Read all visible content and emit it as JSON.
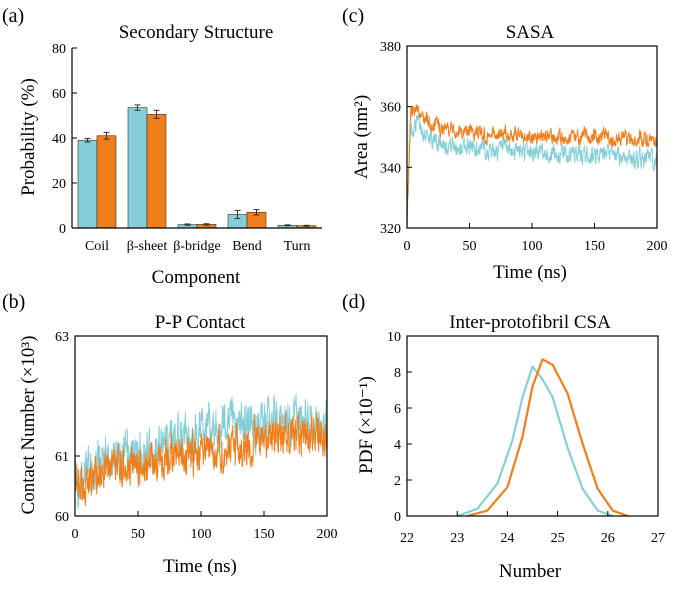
{
  "colors": {
    "cyan": "#86cfd8",
    "orange": "#f07e1b"
  },
  "chart_data": [
    {
      "panel_label": "(a)",
      "type": "bar",
      "title": "Secondary Structure",
      "xlabel": "Component",
      "ylabel": "Probability (%)",
      "ylim": [
        0,
        80
      ],
      "yticks": [
        "0",
        "20",
        "40",
        "60",
        "80"
      ],
      "categories": [
        "Coil",
        "β-sheet",
        "β-bridge",
        "Bend",
        "Turn"
      ],
      "series": [
        {
          "color": "cyan",
          "values": [
            39,
            53.5,
            1.5,
            6,
            1.2
          ],
          "errors": [
            0.8,
            1.2,
            0.3,
            1.8,
            0.2
          ]
        },
        {
          "color": "orange",
          "values": [
            41,
            50.5,
            1.6,
            7,
            1.0
          ],
          "errors": [
            1.5,
            1.8,
            0.3,
            1.2,
            0.2
          ]
        }
      ]
    },
    {
      "panel_label": "(c)",
      "type": "line",
      "title": "SASA",
      "xlabel": "Time (ns)",
      "ylabel": "Area (nm²)",
      "xlim": [
        0,
        200
      ],
      "ylim": [
        320,
        380
      ],
      "xticks": [
        "0",
        "50",
        "100",
        "150",
        "200"
      ],
      "yticks": [
        "320",
        "340",
        "360",
        "380"
      ],
      "series": [
        {
          "color": "cyan",
          "x": [
            0,
            3,
            8,
            20,
            40,
            60,
            80,
            100,
            120,
            150,
            180,
            200
          ],
          "y": [
            322,
            352,
            355,
            349,
            347,
            346,
            345.5,
            345,
            344.5,
            344,
            343,
            343
          ]
        },
        {
          "color": "orange",
          "x": [
            0,
            3,
            8,
            20,
            40,
            60,
            80,
            100,
            120,
            150,
            180,
            200
          ],
          "y": [
            322,
            359,
            358,
            354,
            352,
            351,
            351,
            350.5,
            350,
            350,
            349.5,
            349.5
          ]
        }
      ]
    },
    {
      "panel_label": "(b)",
      "type": "line",
      "title": "P-P Contact",
      "xlabel": "Time (ns)",
      "ylabel": "Contact Number (×10³)",
      "xlim": [
        0,
        200
      ],
      "ylim": [
        60,
        63
      ],
      "xticks": [
        "0",
        "50",
        "100",
        "150",
        "200"
      ],
      "yticks": [
        "60",
        "61",
        "63"
      ],
      "series": [
        {
          "color": "cyan",
          "x": [
            0,
            5,
            20,
            40,
            60,
            80,
            100,
            120,
            140,
            160,
            180,
            200
          ],
          "y": [
            60.7,
            60.6,
            60.95,
            61.0,
            61.15,
            61.3,
            61.4,
            61.55,
            61.55,
            61.6,
            61.6,
            61.6
          ]
        },
        {
          "color": "orange",
          "x": [
            0,
            5,
            20,
            40,
            60,
            80,
            100,
            120,
            140,
            160,
            180,
            200
          ],
          "y": [
            60.7,
            60.5,
            60.75,
            60.8,
            60.9,
            61.0,
            61.05,
            61.15,
            61.2,
            61.35,
            61.35,
            61.4
          ]
        }
      ]
    },
    {
      "panel_label": "(d)",
      "type": "line",
      "title": "Inter-protofibril CSA",
      "xlabel": "Number",
      "ylabel": "PDF (×10⁻¹)",
      "xlim": [
        22,
        27
      ],
      "ylim": [
        0,
        10
      ],
      "xticks": [
        "22",
        "23",
        "24",
        "25",
        "26",
        "27"
      ],
      "yticks": [
        "0",
        "2",
        "4",
        "6",
        "8",
        "10"
      ],
      "series": [
        {
          "color": "cyan",
          "x": [
            23.0,
            23.4,
            23.8,
            24.1,
            24.3,
            24.5,
            24.7,
            24.9,
            25.2,
            25.5,
            25.8,
            26.1
          ],
          "y": [
            0,
            0.4,
            1.8,
            4.2,
            6.6,
            8.3,
            7.6,
            6.6,
            3.8,
            1.5,
            0.3,
            0
          ]
        },
        {
          "color": "orange",
          "x": [
            23.2,
            23.6,
            24.0,
            24.3,
            24.5,
            24.7,
            24.9,
            25.2,
            25.5,
            25.8,
            26.1,
            26.4
          ],
          "y": [
            0,
            0.3,
            1.6,
            4.4,
            7.2,
            8.7,
            8.4,
            6.8,
            4.0,
            1.5,
            0.3,
            0
          ]
        }
      ]
    }
  ]
}
